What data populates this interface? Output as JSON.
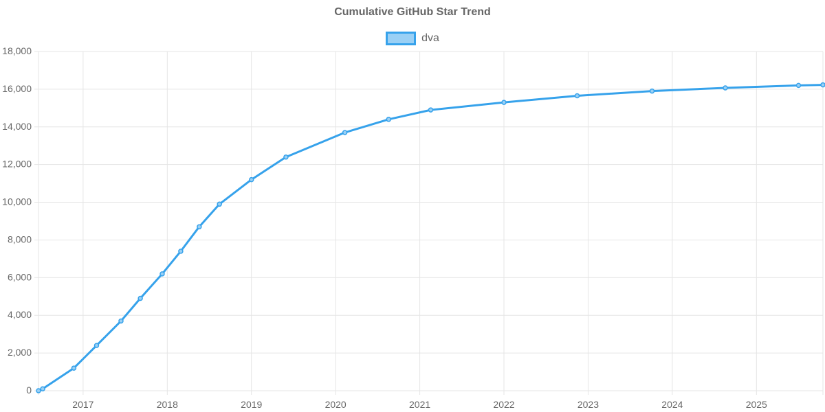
{
  "colors": {
    "series": "#36a2eb",
    "series_fill": "#9ad0f5",
    "grid": "#e5e5e5",
    "text": "#666666"
  },
  "chart_data": {
    "type": "line",
    "title": "Cumulative GitHub Star Trend",
    "legend_position": "top",
    "grid": true,
    "xlim": [
      2016.47,
      2025.79
    ],
    "ylim": [
      0,
      18000
    ],
    "x_ticks": [
      2017,
      2018,
      2019,
      2020,
      2021,
      2022,
      2023,
      2024,
      2025
    ],
    "y_ticks": [
      0,
      2000,
      4000,
      6000,
      8000,
      10000,
      12000,
      14000,
      16000,
      18000
    ],
    "y_tick_labels": [
      "0",
      "2,000",
      "4,000",
      "6,000",
      "8,000",
      "10,000",
      "12,000",
      "14,000",
      "16,000",
      "18,000"
    ],
    "series": [
      {
        "name": "dva",
        "points": [
          {
            "x": 2016.47,
            "y": 0
          },
          {
            "x": 2016.52,
            "y": 100
          },
          {
            "x": 2016.89,
            "y": 1200
          },
          {
            "x": 2017.16,
            "y": 2400
          },
          {
            "x": 2017.45,
            "y": 3700
          },
          {
            "x": 2017.68,
            "y": 4900
          },
          {
            "x": 2017.94,
            "y": 6200
          },
          {
            "x": 2018.16,
            "y": 7400
          },
          {
            "x": 2018.38,
            "y": 8700
          },
          {
            "x": 2018.62,
            "y": 9900
          },
          {
            "x": 2019.0,
            "y": 11200
          },
          {
            "x": 2019.41,
            "y": 12400
          },
          {
            "x": 2020.11,
            "y": 13700
          },
          {
            "x": 2020.63,
            "y": 14400
          },
          {
            "x": 2021.13,
            "y": 14900
          },
          {
            "x": 2022.0,
            "y": 15300
          },
          {
            "x": 2022.87,
            "y": 15650
          },
          {
            "x": 2023.76,
            "y": 15900
          },
          {
            "x": 2024.63,
            "y": 16070
          },
          {
            "x": 2025.5,
            "y": 16200
          },
          {
            "x": 2025.79,
            "y": 16230
          }
        ]
      }
    ]
  }
}
